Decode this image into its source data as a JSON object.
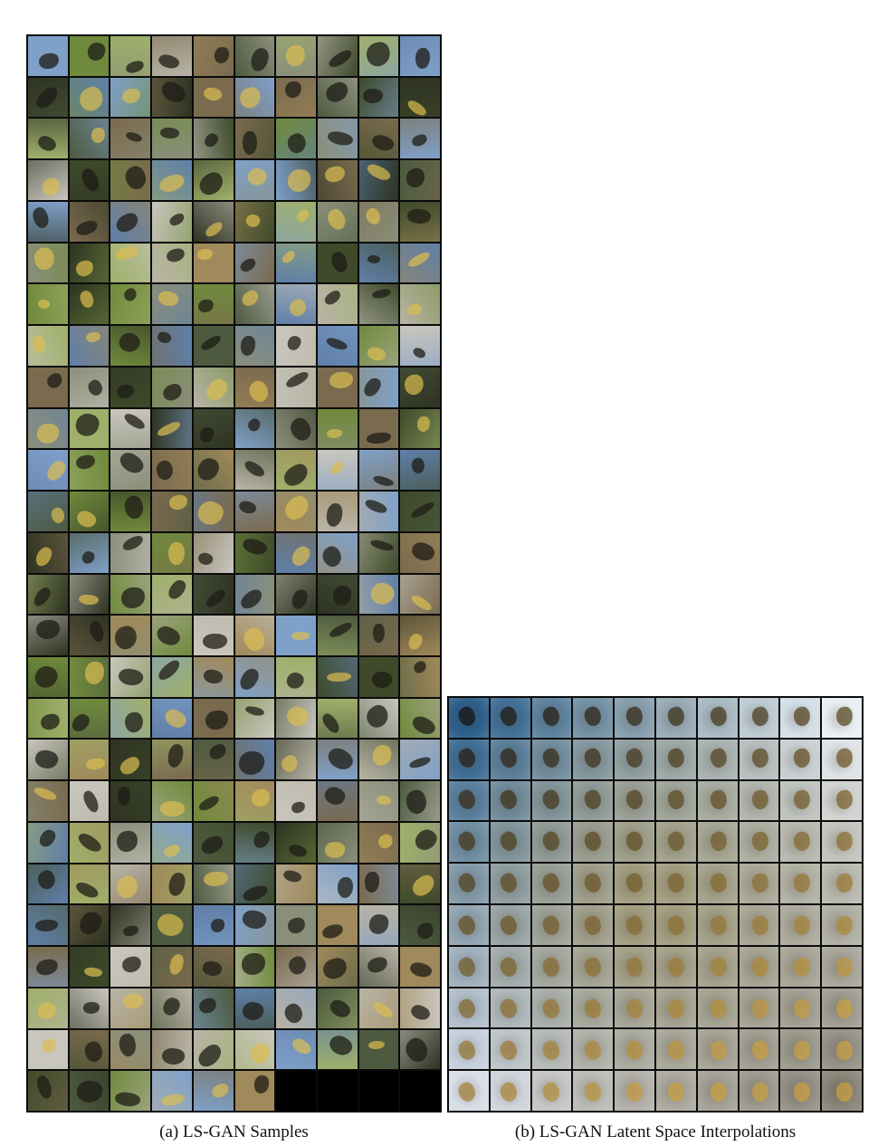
{
  "figure": {
    "panel_a": {
      "caption": "(a) LS-GAN Samples",
      "columns": 10,
      "rows": 26,
      "filled_samples": 256
    },
    "panel_b": {
      "caption": "(b) LS-GAN Latent Space Interpolations",
      "columns": 10,
      "rows": 10
    }
  },
  "palette": {
    "background": "#ffffff",
    "frame": "#0b0b0b",
    "sample_tones": [
      "#6f8a3c",
      "#8a8f7a",
      "#5f7fa8",
      "#3e4a2a",
      "#b8b4a6",
      "#7a6a4e",
      "#9fb06a",
      "#4d5a3f",
      "#c9c6bd",
      "#2e3322",
      "#a0895a",
      "#7fa0c8"
    ],
    "interp_top_left": "#2c5f8a",
    "interp_top_right": "#e8eef2",
    "interp_bottom_left": "#d8dde6",
    "interp_bottom_right": "#8a8578",
    "interp_center": "#a29a78"
  }
}
